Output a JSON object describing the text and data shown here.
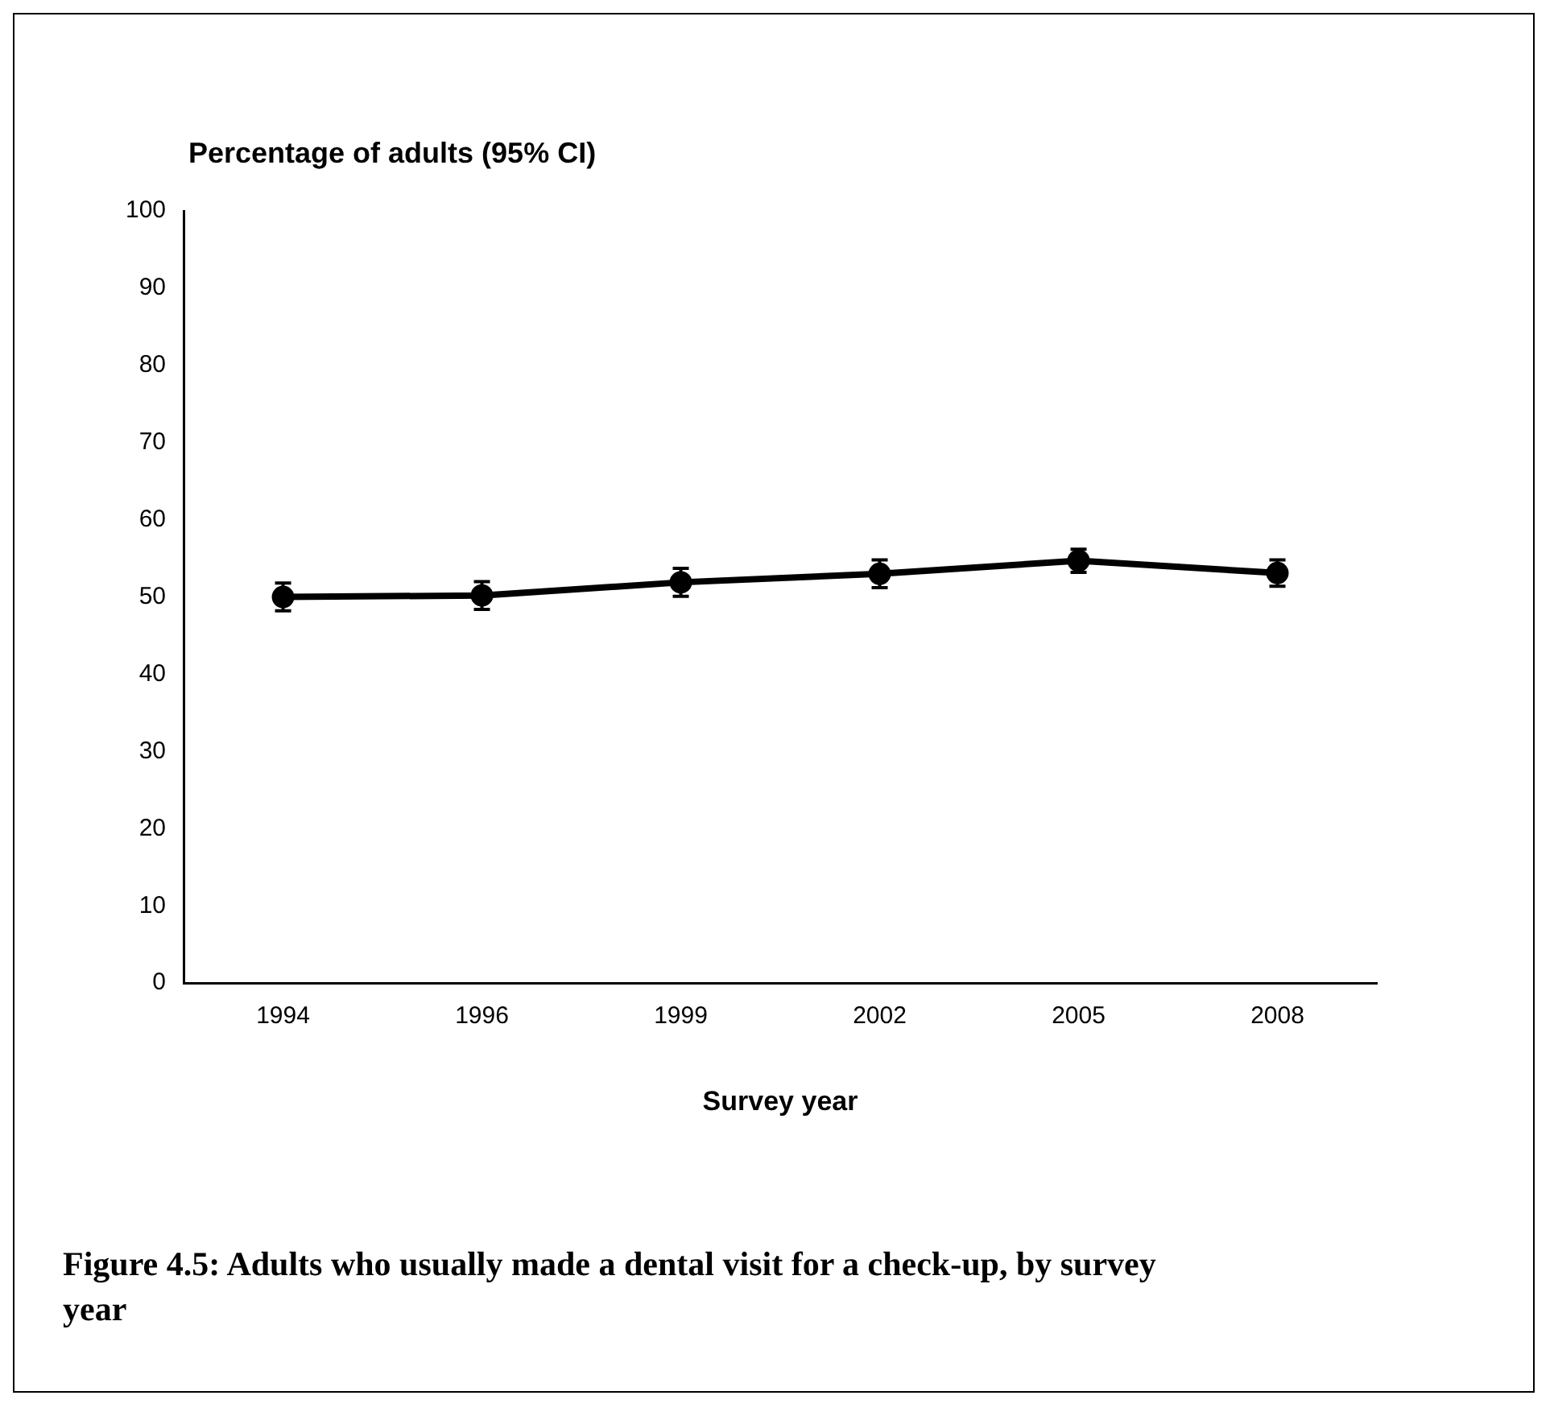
{
  "chart_data": {
    "type": "line",
    "ylabel": "Percentage of adults (95% CI)",
    "xlabel": "Survey year",
    "annotations": [
      "Figure 4.5: Adults who usually made a dental visit for a check-up, by survey year"
    ],
    "categories": [
      "1994",
      "1996",
      "1999",
      "2002",
      "2005",
      "2008"
    ],
    "series": [
      {
        "color": "#000000",
        "values": [
          50.0,
          50.2,
          51.9,
          53.0,
          54.7,
          53.1
        ],
        "errors": [
          1.8,
          1.8,
          1.8,
          1.8,
          1.5,
          1.7
        ]
      }
    ],
    "ylim": [
      0,
      100
    ],
    "yticks": [
      0,
      10,
      20,
      30,
      40,
      50,
      60,
      70,
      80,
      90,
      100
    ],
    "grid": false,
    "legend": false,
    "marker": "circle",
    "line_style": "solid"
  }
}
